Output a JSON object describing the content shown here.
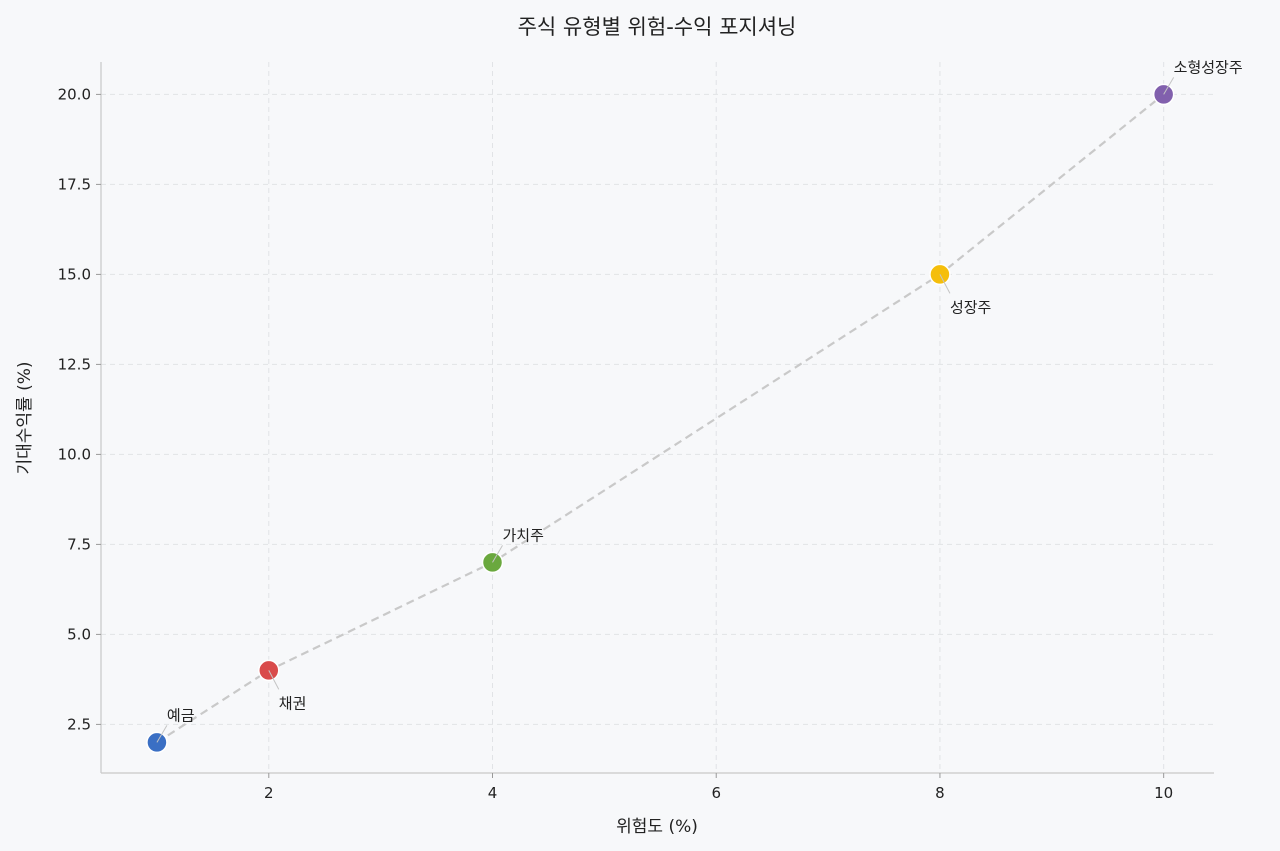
{
  "chart_data": {
    "type": "scatter",
    "title": "주식 유형별 위험-수익 포지셔닝",
    "xlabel": "위험도 (%)",
    "ylabel": "기대수익률 (%)",
    "xlim": [
      0.5,
      10.45
    ],
    "ylim": [
      1.15,
      20.9
    ],
    "xticks": [
      "2",
      "4",
      "6",
      "8",
      "10"
    ],
    "yticks": [
      "2.5",
      "5.0",
      "7.5",
      "10.0",
      "12.5",
      "15.0",
      "17.5",
      "20.0"
    ],
    "grid": true,
    "connecting_line": "dashed",
    "points": [
      {
        "label": "예금",
        "x": 1,
        "y": 2,
        "color": "#3a6fc4",
        "label_position": "above-right"
      },
      {
        "label": "채권",
        "x": 2,
        "y": 4,
        "color": "#d94b4b",
        "label_position": "below-right"
      },
      {
        "label": "가치주",
        "x": 4,
        "y": 7,
        "color": "#6aa83e",
        "label_position": "above-right"
      },
      {
        "label": "성장주",
        "x": 8,
        "y": 15,
        "color": "#f5be0b",
        "label_position": "below-right"
      },
      {
        "label": "소형성장주",
        "x": 10,
        "y": 20,
        "color": "#8160ad",
        "label_position": "above-right"
      }
    ]
  }
}
